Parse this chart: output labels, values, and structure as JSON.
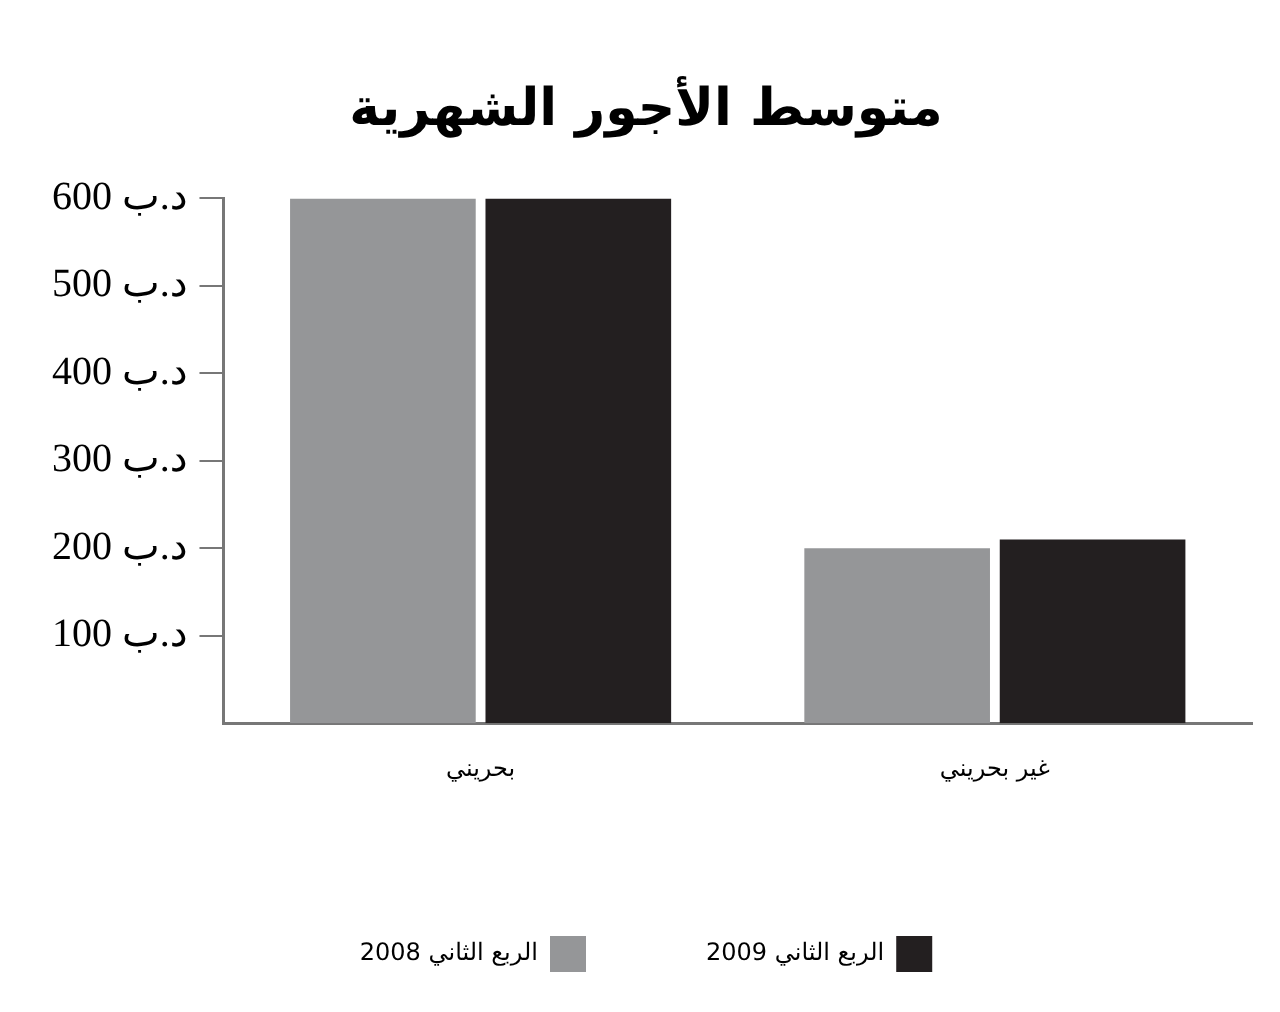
{
  "chart_data": {
    "type": "bar",
    "title": "متوسط الأجور الشهرية",
    "categories": [
      "بحريني",
      "غير بحريني"
    ],
    "series": [
      {
        "name": "الربع الثاني 2008",
        "color": "#959698",
        "values": [
          600,
          200
        ]
      },
      {
        "name": "الربع الثاني 2009",
        "color": "#231f20",
        "values": [
          600,
          210
        ]
      }
    ],
    "ylim": [
      0,
      600
    ],
    "yticks": [
      {
        "value": 100,
        "label": "100 د.ب"
      },
      {
        "value": 200,
        "label": "200 د.ب"
      },
      {
        "value": 300,
        "label": "300 د.ب"
      },
      {
        "value": 400,
        "label": "400 د.ب"
      },
      {
        "value": 500,
        "label": "500 د.ب"
      },
      {
        "value": 600,
        "label": "600 د.ب"
      }
    ],
    "grid": false,
    "legend": "bottom"
  }
}
